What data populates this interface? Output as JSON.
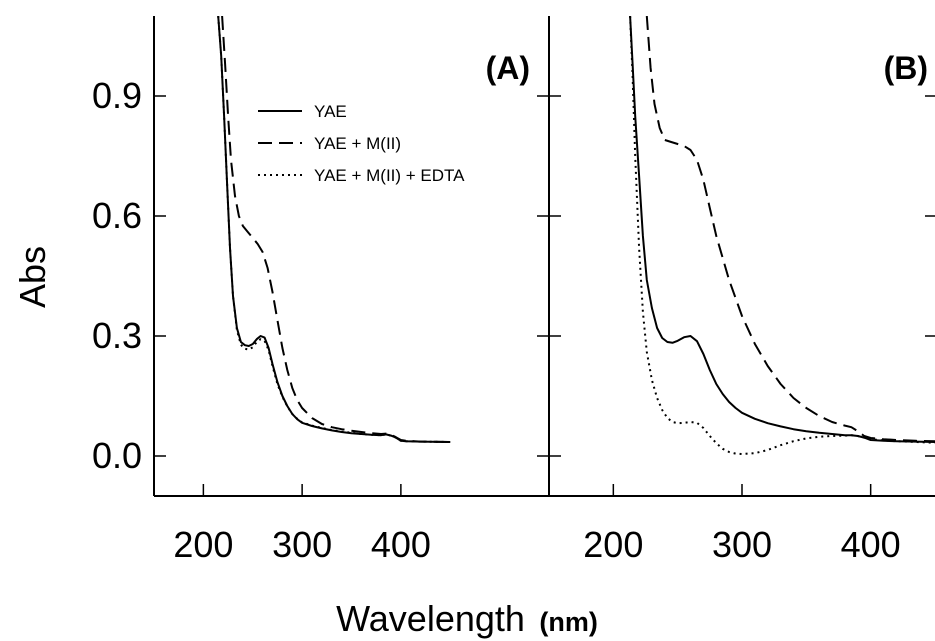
{
  "chart_data": [
    {
      "type": "line",
      "panel_label": "(A)",
      "xlim": [
        150,
        550
      ],
      "ylim": [
        -0.1,
        1.1
      ],
      "xticks": [
        200,
        300,
        400
      ],
      "yticks": [
        0.0,
        0.3,
        0.6,
        0.9
      ],
      "ylabel": "Abs",
      "legend": [
        "YAE",
        "YAE + M(II)",
        "YAE + M(II) + EDTA"
      ],
      "series": [
        {
          "name": "YAE",
          "style": "solid",
          "x": [
            215,
            218,
            221,
            224,
            227,
            230,
            234,
            238,
            242,
            246,
            250,
            254,
            258,
            262,
            266,
            270,
            275,
            280,
            285,
            290,
            295,
            300,
            310,
            320,
            330,
            340,
            350,
            360,
            370,
            380,
            385,
            390,
            395,
            400,
            405,
            420,
            450
          ],
          "y": [
            1.1,
            1.0,
            0.85,
            0.68,
            0.52,
            0.4,
            0.32,
            0.285,
            0.277,
            0.275,
            0.28,
            0.292,
            0.3,
            0.296,
            0.27,
            0.23,
            0.185,
            0.15,
            0.125,
            0.105,
            0.092,
            0.083,
            0.075,
            0.069,
            0.064,
            0.06,
            0.057,
            0.055,
            0.053,
            0.052,
            0.054,
            0.051,
            0.046,
            0.038,
            0.037,
            0.036,
            0.035
          ]
        },
        {
          "name": "YAE + M(II)",
          "style": "dashed",
          "x": [
            219,
            222,
            225,
            228,
            232,
            236,
            240,
            245,
            250,
            255,
            260,
            265,
            270,
            275,
            280,
            285,
            290,
            295,
            300,
            310,
            320,
            330,
            340,
            350,
            360,
            370,
            380,
            385,
            390,
            395,
            400,
            405,
            420,
            450
          ],
          "y": [
            1.1,
            0.98,
            0.85,
            0.74,
            0.65,
            0.6,
            0.575,
            0.56,
            0.545,
            0.53,
            0.51,
            0.47,
            0.41,
            0.34,
            0.27,
            0.215,
            0.17,
            0.14,
            0.12,
            0.095,
            0.08,
            0.072,
            0.067,
            0.063,
            0.06,
            0.057,
            0.055,
            0.056,
            0.053,
            0.047,
            0.04,
            0.038,
            0.036,
            0.035
          ]
        },
        {
          "name": "YAE + M(II) + EDTA",
          "style": "dotted",
          "x": [
            215,
            218,
            221,
            224,
            227,
            230,
            234,
            238,
            242,
            246,
            250,
            254,
            258,
            262,
            266,
            270,
            275,
            280,
            285,
            290,
            295,
            300,
            310,
            320,
            330,
            340,
            350,
            360,
            370,
            380,
            385,
            390,
            395,
            400,
            405,
            420,
            450
          ],
          "y": [
            1.1,
            1.0,
            0.85,
            0.68,
            0.52,
            0.4,
            0.315,
            0.278,
            0.268,
            0.266,
            0.272,
            0.285,
            0.292,
            0.288,
            0.265,
            0.225,
            0.18,
            0.148,
            0.124,
            0.105,
            0.093,
            0.084,
            0.076,
            0.07,
            0.065,
            0.061,
            0.058,
            0.055,
            0.053,
            0.052,
            0.054,
            0.051,
            0.046,
            0.038,
            0.037,
            0.036,
            0.035
          ]
        }
      ]
    },
    {
      "type": "line",
      "panel_label": "(B)",
      "xlim": [
        150,
        450
      ],
      "ylim": [
        -0.1,
        1.1
      ],
      "xticks": [
        200,
        300,
        400
      ],
      "yticks": [
        0.0,
        0.3,
        0.6,
        0.9
      ],
      "series": [
        {
          "name": "YAE",
          "style": "solid",
          "x": [
            213,
            215,
            217,
            220,
            223,
            226,
            230,
            234,
            238,
            242,
            246,
            250,
            255,
            260,
            265,
            270,
            275,
            280,
            285,
            290,
            295,
            300,
            310,
            320,
            330,
            340,
            350,
            360,
            370,
            380,
            385,
            390,
            395,
            400,
            410,
            420,
            435,
            450
          ],
          "y": [
            1.1,
            0.98,
            0.85,
            0.7,
            0.55,
            0.44,
            0.37,
            0.32,
            0.295,
            0.285,
            0.283,
            0.288,
            0.297,
            0.3,
            0.287,
            0.255,
            0.215,
            0.18,
            0.155,
            0.135,
            0.12,
            0.108,
            0.093,
            0.082,
            0.074,
            0.067,
            0.062,
            0.058,
            0.055,
            0.052,
            0.052,
            0.05,
            0.046,
            0.04,
            0.038,
            0.037,
            0.036,
            0.035
          ]
        },
        {
          "name": "YAE + M(II)",
          "style": "dashed",
          "x": [
            226,
            229,
            232,
            236,
            240,
            245,
            250,
            255,
            260,
            265,
            270,
            275,
            280,
            290,
            300,
            310,
            320,
            330,
            340,
            350,
            360,
            370,
            380,
            385,
            390,
            395,
            400,
            410,
            420,
            435,
            450
          ],
          "y": [
            1.1,
            0.97,
            0.88,
            0.82,
            0.79,
            0.785,
            0.78,
            0.775,
            0.765,
            0.74,
            0.69,
            0.62,
            0.55,
            0.44,
            0.35,
            0.28,
            0.225,
            0.18,
            0.145,
            0.12,
            0.1,
            0.085,
            0.076,
            0.072,
            0.062,
            0.05,
            0.045,
            0.042,
            0.04,
            0.038,
            0.037
          ]
        },
        {
          "name": "YAE + M(II) + EDTA",
          "style": "dotted",
          "x": [
            213,
            215,
            217,
            220,
            223,
            226,
            230,
            234,
            238,
            242,
            246,
            250,
            255,
            260,
            265,
            270,
            275,
            280,
            285,
            290,
            295,
            300,
            310,
            320,
            330,
            340,
            350,
            360,
            370,
            380,
            385,
            390,
            395,
            400,
            410,
            420,
            435,
            450
          ],
          "y": [
            1.1,
            0.95,
            0.75,
            0.52,
            0.36,
            0.26,
            0.19,
            0.145,
            0.115,
            0.095,
            0.085,
            0.082,
            0.083,
            0.085,
            0.083,
            0.07,
            0.05,
            0.032,
            0.018,
            0.01,
            0.006,
            0.005,
            0.007,
            0.015,
            0.027,
            0.037,
            0.044,
            0.048,
            0.05,
            0.051,
            0.052,
            0.05,
            0.046,
            0.042,
            0.039,
            0.037,
            0.035,
            0.033
          ]
        }
      ]
    }
  ],
  "shared": {
    "xlabel_main": "Wavelength",
    "xlabel_unit": "(nm)",
    "ylabel": "Abs"
  }
}
